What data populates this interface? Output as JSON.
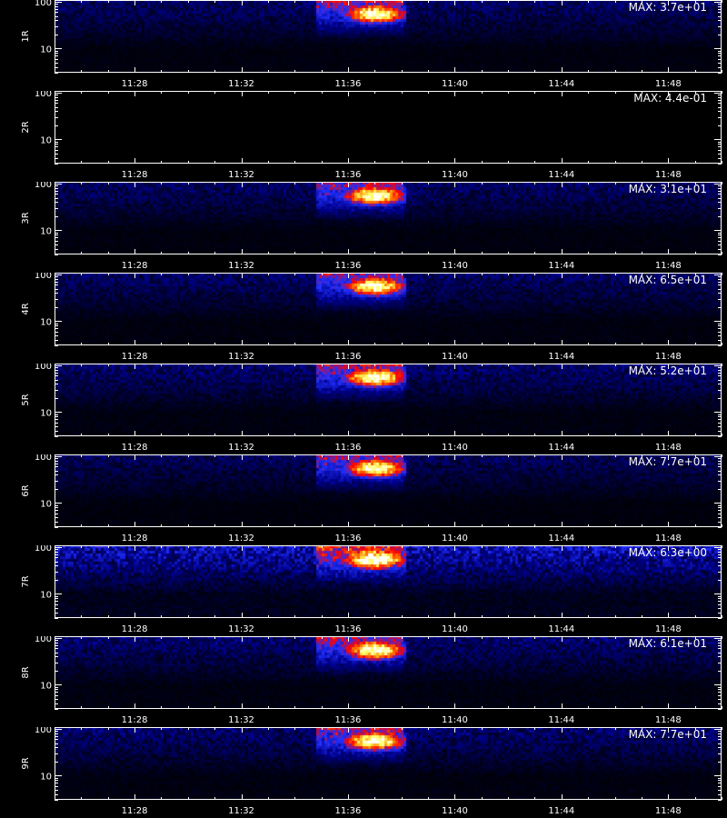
{
  "chart_data": {
    "type": "heatmap",
    "panel_count": 9,
    "x_tick_labels": [
      "11:28",
      "11:32",
      "11:36",
      "11:40",
      "11:44",
      "11:48"
    ],
    "x_range_minutes": [
      "11:25",
      "11:50"
    ],
    "y_scale": "log",
    "y_tick_labels": [
      "10",
      "100"
    ],
    "y_range": [
      3,
      110
    ],
    "burst": {
      "peak_time": "11:37",
      "start_time": "11:35",
      "end_time": "11:38"
    },
    "colormap": [
      "#000000",
      "#00008b",
      "#2030ff",
      "#ff0000",
      "#ff8000",
      "#ffff60",
      "#ffffff"
    ],
    "panels": [
      {
        "detector": "1R",
        "max_label": "MAX: 3.7e+01",
        "max": 37,
        "noise": 0.45
      },
      {
        "detector": "2R",
        "max_label": "MAX: 4.4e-01",
        "max": 0.44,
        "noise": 0.0
      },
      {
        "detector": "3R",
        "max_label": "MAX: 3.1e+01",
        "max": 31,
        "noise": 0.45
      },
      {
        "detector": "4R",
        "max_label": "MAX: 6.5e+01",
        "max": 65,
        "noise": 0.45
      },
      {
        "detector": "5R",
        "max_label": "MAX: 5.2e+01",
        "max": 52,
        "noise": 0.5
      },
      {
        "detector": "6R",
        "max_label": "MAX: 7.7e+01",
        "max": 77,
        "noise": 0.4
      },
      {
        "detector": "7R",
        "max_label": "MAX: 6.3e+00",
        "max": 6.3,
        "noise": 0.85
      },
      {
        "detector": "8R",
        "max_label": "MAX: 6.1e+01",
        "max": 61,
        "noise": 0.5
      },
      {
        "detector": "9R",
        "max_label": "MAX: 7.7e+01",
        "max": 77,
        "noise": 0.5
      }
    ]
  }
}
